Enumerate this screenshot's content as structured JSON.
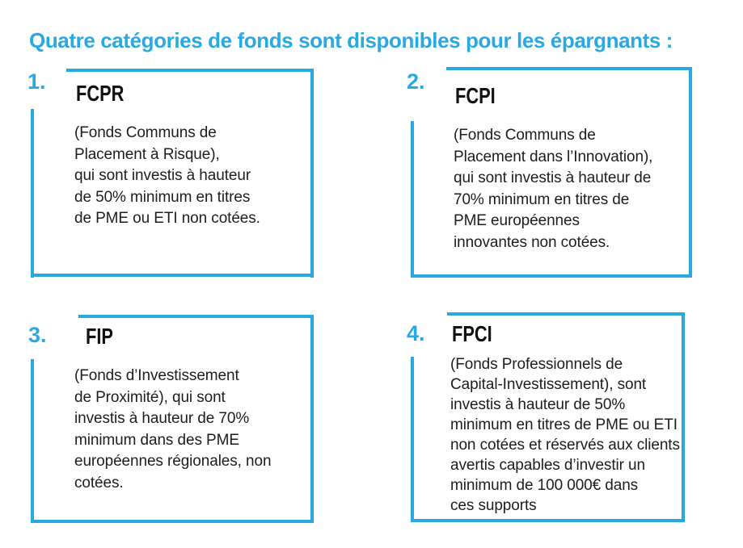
{
  "title": "Quatre catégories de fonds sont disponibles pour les épargnants :",
  "colors": {
    "accent_blue": "#29a9e2",
    "heading_text": "#111111",
    "body_text": "#1d1d1d",
    "background": "#ffffff"
  },
  "cards": [
    {
      "number": "1.",
      "acronym": "FCPR",
      "description": "(Fonds Communs de\nPlacement à Risque),\nqui sont investis à hauteur\nde 50% minimum en titres\nde PME ou ETI non cotées."
    },
    {
      "number": "2.",
      "acronym": "FCPI",
      "description": "(Fonds Communs de\nPlacement dans l’Innovation),\nqui sont investis à hauteur de\n70% minimum en titres de\nPME européennes\ninnovantes non cotées."
    },
    {
      "number": "3.",
      "acronym": "FIP",
      "description": "(Fonds d’Investissement\nde Proximité), qui sont\ninvestis à hauteur de 70%\nminimum dans des PME\neuropéennes régionales, non\ncotées."
    },
    {
      "number": "4.",
      "acronym": "FPCI",
      "description": "(Fonds Professionnels de\nCapital-Investissement), sont\ninvestis à hauteur de 50%\nminimum en titres de PME ou ETI\nnon cotées et réservés aux clients\navertis capables d’investir un\nminimum de 100 000€ dans\nces supports"
    }
  ]
}
